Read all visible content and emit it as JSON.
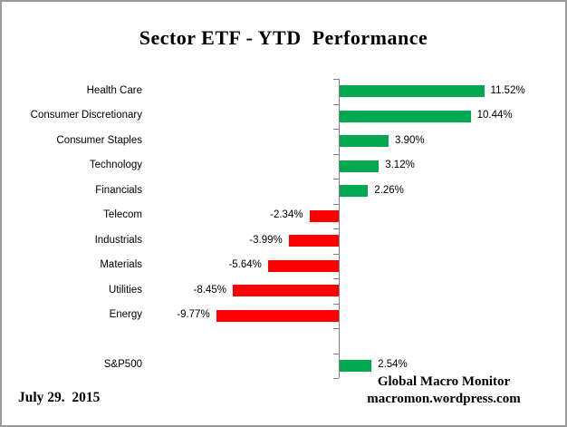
{
  "chart_data": {
    "type": "bar",
    "orientation": "horizontal",
    "title": "Sector ETF - YTD  Performance",
    "categories": [
      "Health Care",
      "Consumer Discretionary",
      "Consumer Staples",
      "Technology",
      "Financials",
      "Telecom",
      "Industrials",
      "Materials",
      "Utilities",
      "Energy",
      "S&P500"
    ],
    "values": [
      11.52,
      10.44,
      3.9,
      3.12,
      2.26,
      -2.34,
      -3.99,
      -5.64,
      -8.45,
      -9.77,
      2.54
    ],
    "value_labels": [
      "11.52%",
      "10.44%",
      "3.90%",
      "3.12%",
      "2.26%",
      "-2.34%",
      "-3.99%",
      "-5.64%",
      "-8.45%",
      "-9.77%",
      "2.54%"
    ],
    "spacer_after_index": 9,
    "positive_color": "#00A84F",
    "negative_color": "#FF0000",
    "axis_color": "#808080",
    "xlim": [
      -10,
      12
    ],
    "gridlines": false,
    "legend": "none",
    "value_label_position": "outside-end"
  },
  "footer": {
    "date": "July 29.  2015",
    "source_line1": "Global Macro Monitor",
    "source_line2": "macromon.wordpress.com"
  }
}
